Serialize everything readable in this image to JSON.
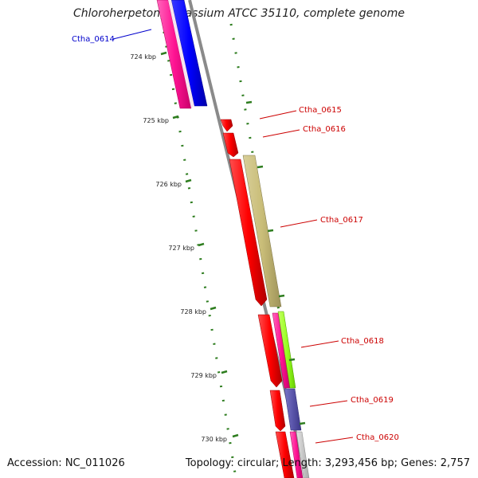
{
  "title": "Chloroherpeton thalassium ATCC 35110, complete genome",
  "accession": "Accession: NC_011026",
  "topology": "Topology: circular; Length: 3,293,456 bp; Genes: 2,757",
  "colors": {
    "backbone": "#8a8a8a",
    "tick": "#2e7d1f",
    "label_forward": "#0000cc",
    "label_reverse": "#cc0000"
  },
  "kbp_labels": [
    "724 kbp",
    "725 kbp",
    "726 kbp",
    "727 kbp",
    "728 kbp",
    "729 kbp",
    "730 kbp"
  ],
  "genes": [
    {
      "name": "Ctha_0614",
      "strand": "forward",
      "color": "#0000cc"
    },
    {
      "name": "Ctha_0615",
      "strand": "reverse",
      "color": "#cc0000"
    },
    {
      "name": "Ctha_0616",
      "strand": "reverse",
      "color": "#cc0000"
    },
    {
      "name": "Ctha_0617",
      "strand": "reverse",
      "color": "#cc0000"
    },
    {
      "name": "Ctha_0618",
      "strand": "reverse",
      "color": "#cc0000"
    },
    {
      "name": "Ctha_0619",
      "strand": "reverse",
      "color": "#cc0000"
    },
    {
      "name": "Ctha_0620",
      "strand": "reverse",
      "color": "#cc0000"
    }
  ]
}
